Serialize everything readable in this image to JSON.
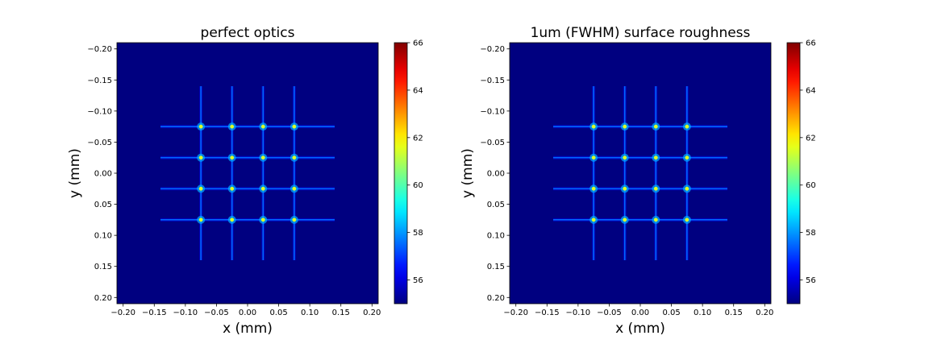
{
  "chart_data": [
    {
      "type": "heatmap",
      "title": "perfect optics",
      "xlabel": "x (mm)",
      "ylabel": "y (mm)",
      "xlim": [
        -0.21,
        0.21
      ],
      "ylim": [
        0.21,
        -0.21
      ],
      "y_axis_inverted": true,
      "x_ticks": [
        "−0.20",
        "−0.15",
        "−0.10",
        "−0.05",
        "0.00",
        "0.05",
        "0.10",
        "0.15",
        "0.20"
      ],
      "y_ticks": [
        "−0.20",
        "−0.15",
        "−0.10",
        "−0.05",
        "0.00",
        "0.05",
        "0.10",
        "0.15",
        "0.20"
      ],
      "colormap": "jet",
      "colorbar": {
        "min": 55,
        "max": 66,
        "ticks": [
          "56",
          "58",
          "60",
          "62",
          "64",
          "66"
        ]
      },
      "grid_lines_x": [
        -0.075,
        -0.025,
        0.025,
        0.075
      ],
      "grid_lines_y": [
        -0.075,
        -0.025,
        0.025,
        0.075
      ],
      "line_extent": 0.14,
      "background_value": 55,
      "line_value": 57.5,
      "peak_value": 61.5
    },
    {
      "type": "heatmap",
      "title": "1um (FWHM) surface roughness",
      "xlabel": "x (mm)",
      "ylabel": "y (mm)",
      "xlim": [
        -0.21,
        0.21
      ],
      "ylim": [
        0.21,
        -0.21
      ],
      "y_axis_inverted": true,
      "x_ticks": [
        "−0.20",
        "−0.15",
        "−0.10",
        "−0.05",
        "0.00",
        "0.05",
        "0.10",
        "0.15",
        "0.20"
      ],
      "y_ticks": [
        "−0.20",
        "−0.15",
        "−0.10",
        "−0.05",
        "0.00",
        "0.05",
        "0.10",
        "0.15",
        "0.20"
      ],
      "colormap": "jet",
      "colorbar": {
        "min": 55,
        "max": 66,
        "ticks": [
          "56",
          "58",
          "60",
          "62",
          "64",
          "66"
        ]
      },
      "grid_lines_x": [
        -0.075,
        -0.025,
        0.025,
        0.075
      ],
      "grid_lines_y": [
        -0.075,
        -0.025,
        0.025,
        0.075
      ],
      "line_extent": 0.14,
      "background_value": 55,
      "line_value": 57.5,
      "peak_value": 61.5
    }
  ]
}
